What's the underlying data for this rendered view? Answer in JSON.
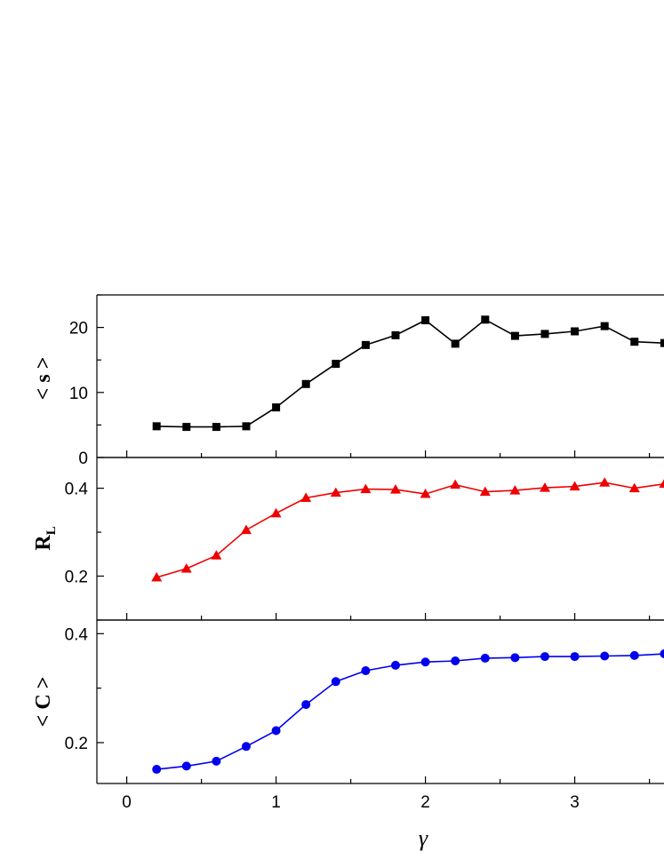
{
  "chart_data": [
    {
      "type": "line",
      "ylabel": "< s >",
      "x": [
        0.2,
        0.4,
        0.6,
        0.8,
        1.0,
        1.2,
        1.4,
        1.6,
        1.8,
        2.0,
        2.2,
        2.4,
        2.6,
        2.8,
        3.0,
        3.2,
        3.4,
        3.6
      ],
      "series": [
        {
          "values": [
            4.8,
            4.7,
            4.7,
            4.8,
            7.7,
            11.3,
            14.4,
            17.3,
            18.8,
            21.1,
            17.5,
            21.2,
            18.7,
            19.0,
            19.4,
            20.2,
            17.8,
            17.6
          ],
          "color": "#000000",
          "marker": "square"
        }
      ],
      "xlim": [
        -0.2,
        3.6
      ],
      "ylim": [
        0,
        25
      ],
      "yticks": [
        "0",
        "10",
        "20"
      ],
      "yticks_values": [
        0,
        10,
        20
      ],
      "grid": false
    },
    {
      "type": "line",
      "ylabel": "R",
      "ylabel_subscript": "L",
      "x": [
        0.2,
        0.4,
        0.6,
        0.8,
        1.0,
        1.2,
        1.4,
        1.6,
        1.8,
        2.0,
        2.2,
        2.4,
        2.6,
        2.8,
        3.0,
        3.2,
        3.4,
        3.6
      ],
      "series": [
        {
          "values": [
            0.197,
            0.217,
            0.247,
            0.305,
            0.343,
            0.378,
            0.39,
            0.398,
            0.397,
            0.387,
            0.408,
            0.392,
            0.395,
            0.401,
            0.404,
            0.413,
            0.4,
            0.41
          ],
          "color": "#ee0000",
          "marker": "triangle"
        }
      ],
      "xlim": [
        -0.2,
        3.6
      ],
      "ylim": [
        0.1,
        0.47
      ],
      "yticks": [
        "0.2",
        "0.4"
      ],
      "yticks_values": [
        0.2,
        0.4
      ],
      "grid": false
    },
    {
      "type": "line",
      "ylabel": "< C >",
      "x": [
        0.2,
        0.4,
        0.6,
        0.8,
        1.0,
        1.2,
        1.4,
        1.6,
        1.8,
        2.0,
        2.2,
        2.4,
        2.6,
        2.8,
        3.0,
        3.2,
        3.4,
        3.6
      ],
      "series": [
        {
          "values": [
            0.151,
            0.157,
            0.166,
            0.193,
            0.222,
            0.27,
            0.312,
            0.332,
            0.342,
            0.348,
            0.35,
            0.355,
            0.356,
            0.358,
            0.358,
            0.359,
            0.36,
            0.363
          ],
          "color": "#0000ee",
          "marker": "circle"
        }
      ],
      "xlim": [
        -0.2,
        3.6
      ],
      "ylim": [
        0.125,
        0.425
      ],
      "yticks": [
        "0.2",
        "0.4"
      ],
      "yticks_values": [
        0.2,
        0.4
      ],
      "xlabel": "γ",
      "xticks": [
        "0",
        "1",
        "2",
        "3"
      ],
      "xticks_values": [
        0,
        1,
        2,
        3
      ],
      "grid": false
    }
  ]
}
